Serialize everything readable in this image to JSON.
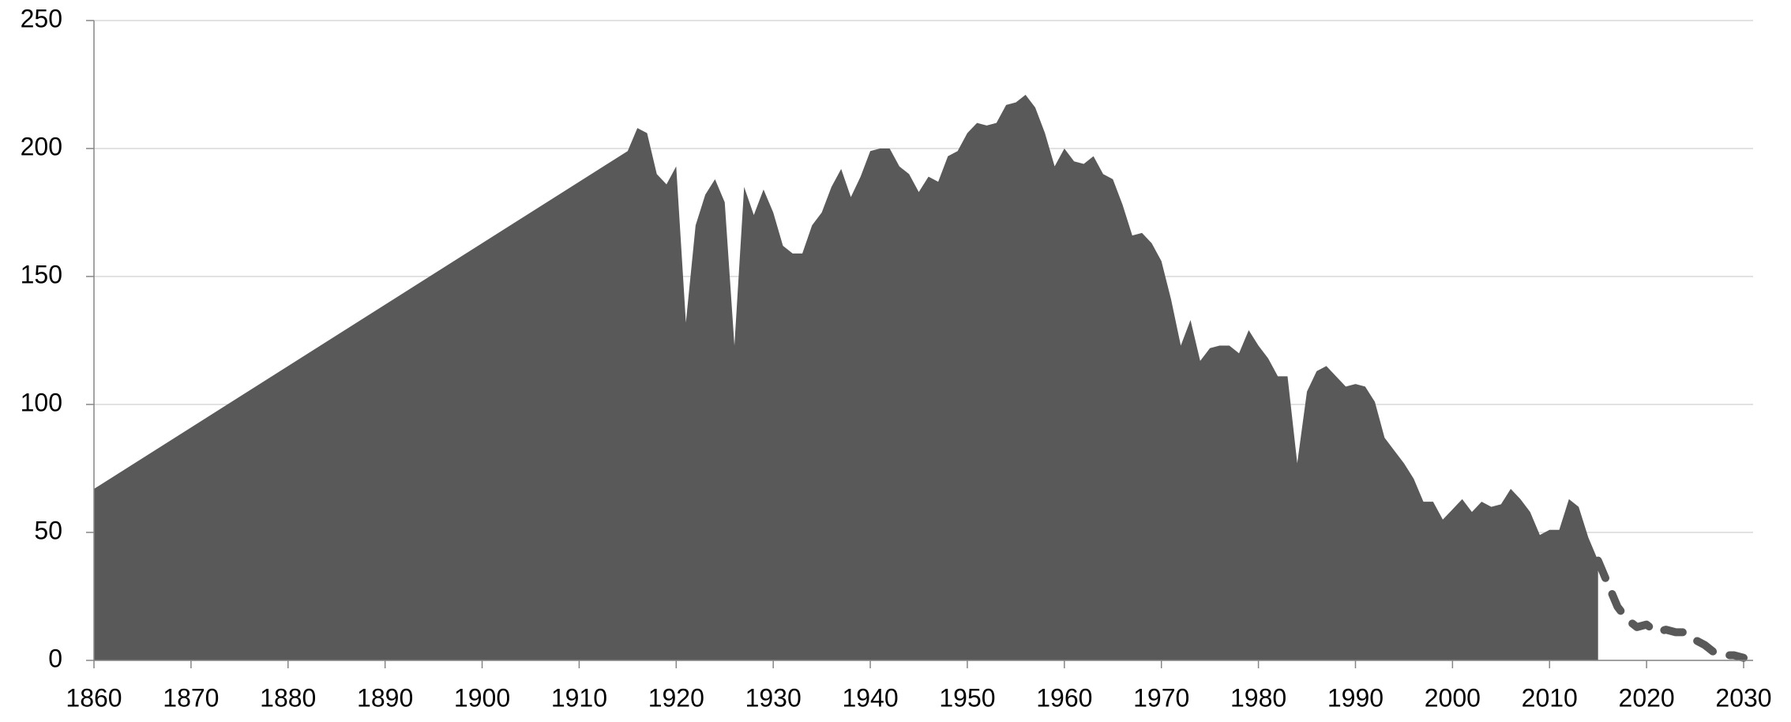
{
  "chart_data": {
    "type": "area",
    "xlim": [
      1860,
      2030
    ],
    "xticks": [
      1860,
      1870,
      1880,
      1890,
      1900,
      1910,
      1920,
      1930,
      1940,
      1950,
      1960,
      1970,
      1980,
      1990,
      2000,
      2010,
      2020,
      2030
    ],
    "ylim": [
      0,
      250
    ],
    "yticks": [
      0,
      50,
      100,
      150,
      200,
      250
    ],
    "grid": true,
    "series": [
      {
        "type": "area",
        "color": "#595959",
        "x": [
          1860,
          1915,
          1916,
          1917,
          1918,
          1919,
          1920,
          1921,
          1922,
          1923,
          1924,
          1925,
          1926,
          1927,
          1928,
          1929,
          1930,
          1931,
          1932,
          1933,
          1934,
          1935,
          1936,
          1937,
          1938,
          1939,
          1940,
          1941,
          1942,
          1943,
          1944,
          1945,
          1946,
          1947,
          1948,
          1949,
          1950,
          1951,
          1952,
          1953,
          1954,
          1955,
          1956,
          1957,
          1958,
          1959,
          1960,
          1961,
          1962,
          1963,
          1964,
          1965,
          1966,
          1967,
          1968,
          1969,
          1970,
          1971,
          1972,
          1973,
          1974,
          1975,
          1976,
          1977,
          1978,
          1979,
          1980,
          1981,
          1982,
          1983,
          1984,
          1985,
          1986,
          1987,
          1988,
          1989,
          1990,
          1991,
          1992,
          1993,
          1994,
          1995,
          1996,
          1997,
          1998,
          1999,
          2000,
          2001,
          2002,
          2003,
          2004,
          2005,
          2006,
          2007,
          2008,
          2009,
          2010,
          2011,
          2012,
          2013,
          2014,
          2015
        ],
        "values": [
          67,
          199,
          208,
          206,
          190,
          186,
          193,
          132,
          170,
          182,
          188,
          179,
          123,
          185,
          174,
          184,
          175,
          162,
          159,
          159,
          170,
          175,
          185,
          192,
          181,
          189,
          199,
          200,
          200,
          193,
          190,
          183,
          189,
          187,
          197,
          199,
          206,
          210,
          209,
          210,
          217,
          218,
          221,
          216,
          206,
          193,
          200,
          195,
          194,
          197,
          190,
          188,
          178,
          166,
          167,
          163,
          156,
          141,
          123,
          133,
          117,
          122,
          123,
          123,
          120,
          129,
          123,
          118,
          111,
          111,
          77,
          105,
          113,
          115,
          111,
          107,
          108,
          107,
          101,
          87,
          82,
          77,
          71,
          62,
          62,
          55,
          59,
          63,
          58,
          62,
          60,
          61,
          67,
          63,
          58,
          49,
          51,
          51,
          63,
          60,
          48,
          39
        ]
      },
      {
        "type": "line",
        "dashed": true,
        "color": "#595959",
        "x": [
          2015,
          2016,
          2017,
          2018,
          2019,
          2020,
          2021,
          2022,
          2023,
          2024,
          2025,
          2026,
          2027,
          2028,
          2029,
          2030
        ],
        "values": [
          39,
          30,
          21,
          16,
          13,
          14,
          11,
          12,
          11,
          11,
          8,
          6,
          3,
          2,
          2,
          1
        ]
      }
    ]
  }
}
